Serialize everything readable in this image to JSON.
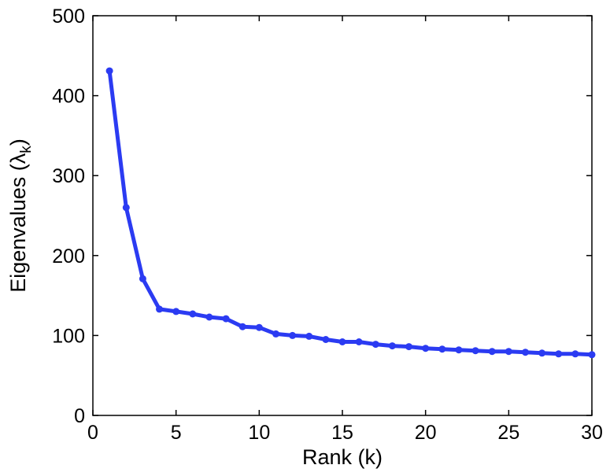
{
  "chart_data": {
    "type": "line",
    "xlabel": "Rank (k)",
    "ylabel": {
      "main": "Eigenvalues (",
      "symbol": "λ",
      "subscript": "k",
      "close": ")"
    },
    "xlim": [
      0,
      30
    ],
    "ylim": [
      0,
      500
    ],
    "xticks": [
      0,
      5,
      10,
      15,
      20,
      25,
      30
    ],
    "yticks": [
      0,
      100,
      200,
      300,
      400,
      500
    ],
    "xtick_labels": [
      "0",
      "5",
      "10",
      "15",
      "20",
      "25",
      "30"
    ],
    "ytick_labels": [
      "0",
      "100",
      "200",
      "300",
      "400",
      "500"
    ],
    "grid": false,
    "legend": "none",
    "line_color": "#2b3bf2",
    "marker": "circle",
    "series": [
      {
        "x": [
          1,
          2,
          3,
          4,
          5,
          6,
          7,
          8,
          9,
          10,
          11,
          12,
          13,
          14,
          15,
          16,
          17,
          18,
          19,
          20,
          21,
          22,
          23,
          24,
          25,
          26,
          27,
          28,
          29,
          30
        ],
        "values": [
          431,
          260,
          171,
          133,
          130,
          127,
          123,
          121,
          111,
          110,
          102,
          100,
          99,
          95,
          92,
          92,
          89,
          87,
          86,
          84,
          83,
          82,
          81,
          80,
          80,
          79,
          78,
          77,
          77,
          76
        ]
      }
    ]
  }
}
